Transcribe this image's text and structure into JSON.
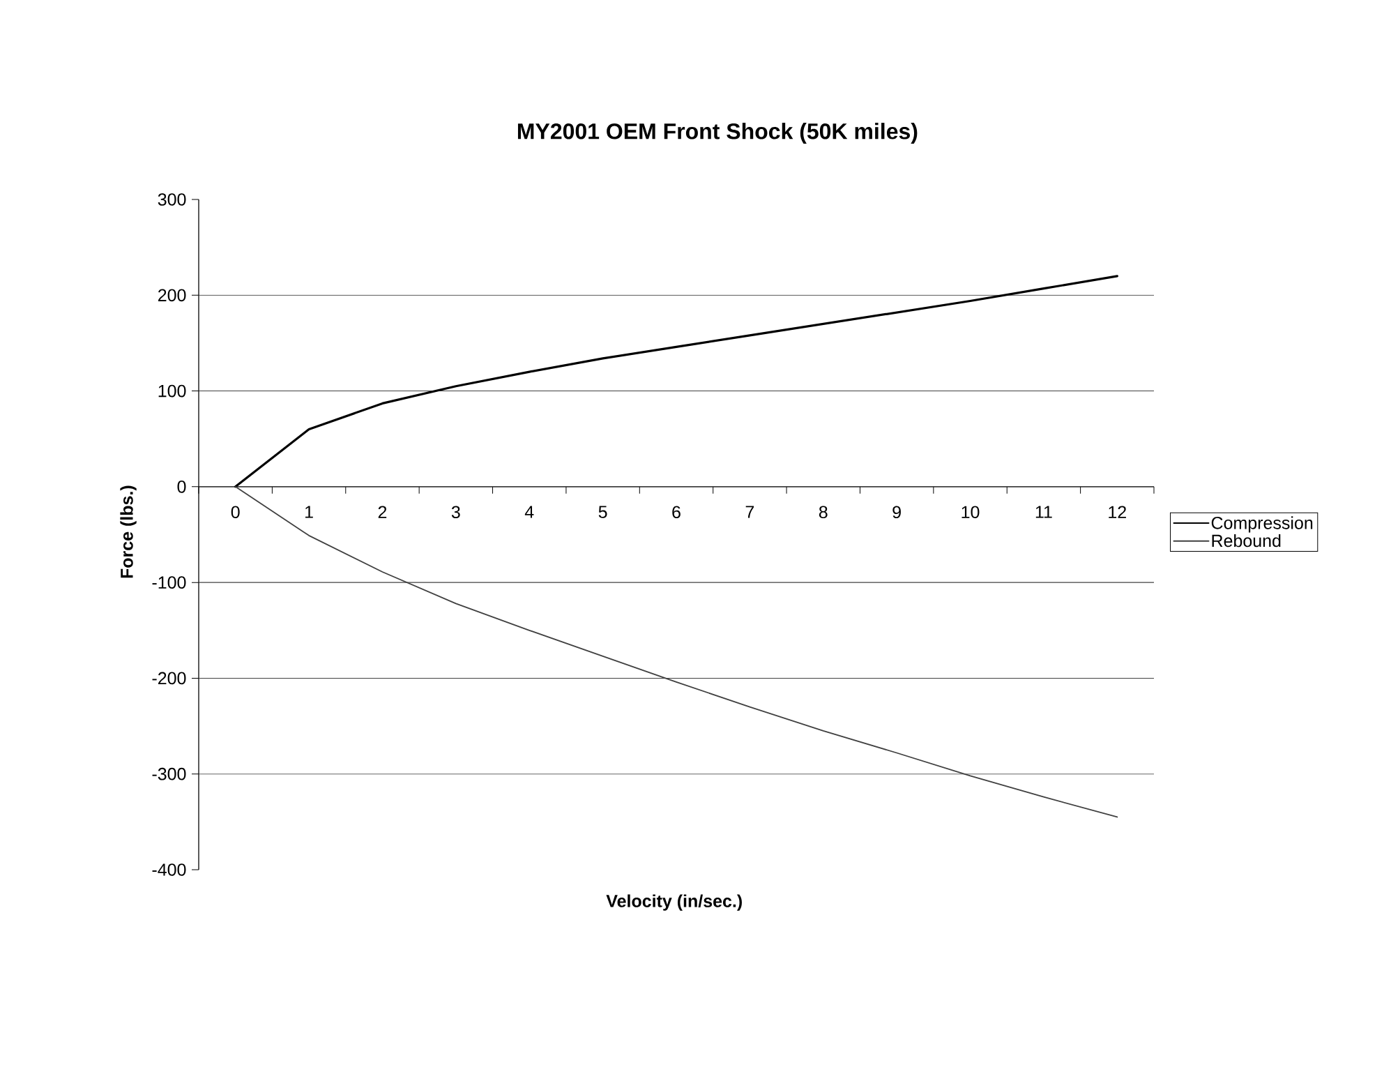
{
  "chart_data": {
    "type": "line",
    "title": "MY2001 OEM Front Shock (50K miles)",
    "xlabel": "Velocity (in/sec.)",
    "ylabel": "Force (lbs.)",
    "categories": [
      "0",
      "1",
      "2",
      "3",
      "4",
      "5",
      "6",
      "7",
      "8",
      "9",
      "10",
      "11",
      "12"
    ],
    "series": [
      {
        "name": "Compression",
        "color": "#000000",
        "values": [
          0,
          60,
          87,
          105,
          120,
          134,
          146,
          158,
          170,
          182,
          194,
          207,
          220
        ]
      },
      {
        "name": "Rebound",
        "color": "#404040",
        "values": [
          0,
          -51,
          -89,
          -122,
          -150,
          -177,
          -204,
          -230,
          -255,
          -278,
          -302,
          -324,
          -345
        ]
      }
    ],
    "ylim": [
      -400,
      300
    ],
    "yticks": [
      -400,
      -300,
      -200,
      -100,
      0,
      100,
      200,
      300
    ],
    "grid": "y",
    "legend": "right",
    "marker": "none",
    "line_style": "solid"
  }
}
